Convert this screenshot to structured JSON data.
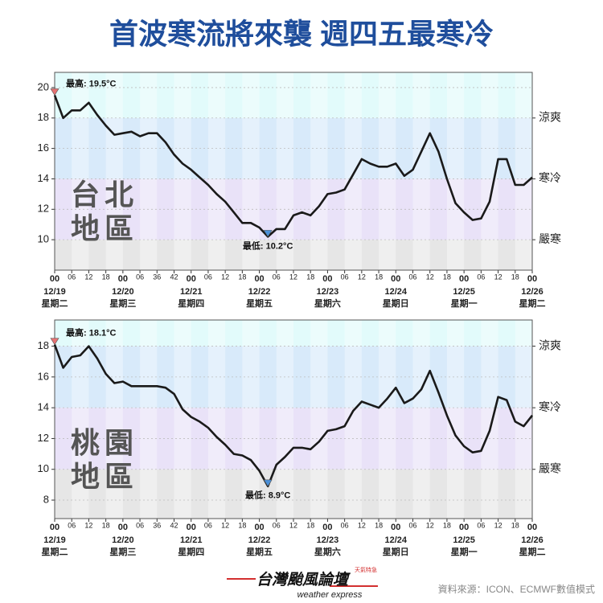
{
  "title": "首波寒流將來襲 週四五最寒冷",
  "chart_data": [
    {
      "type": "line",
      "station_lines": [
        "台北",
        "地區"
      ],
      "x": [
        0,
        3,
        6,
        9,
        12,
        15,
        18,
        21,
        24,
        27,
        30,
        33,
        36,
        39,
        42,
        45,
        48,
        51,
        54,
        57,
        60,
        63,
        66,
        69,
        72,
        75,
        78,
        81,
        84,
        87,
        90,
        93,
        96,
        99,
        102,
        105,
        108,
        111,
        114,
        117,
        120,
        123,
        126,
        129,
        132,
        135,
        138,
        141,
        144,
        147,
        150,
        153,
        156,
        159,
        162,
        165,
        168
      ],
      "series": [
        {
          "color": "#1a1a1a",
          "values": [
            19.5,
            18.0,
            18.5,
            18.5,
            19.0,
            18.2,
            17.5,
            16.9,
            17.0,
            17.1,
            16.8,
            17.0,
            17.0,
            16.4,
            15.6,
            15.0,
            14.6,
            14.1,
            13.6,
            13.0,
            12.5,
            11.8,
            11.1,
            11.1,
            10.8,
            10.2,
            10.7,
            10.7,
            11.6,
            11.8,
            11.6,
            12.2,
            13.0,
            13.1,
            13.3,
            14.3,
            15.3,
            15.0,
            14.8,
            14.8,
            15.0,
            14.2,
            14.6,
            15.8,
            17.0,
            15.8,
            14.0,
            12.4,
            11.8,
            11.3,
            11.4,
            12.5,
            15.3,
            15.3,
            13.6,
            13.6,
            14.1
          ]
        }
      ],
      "xlim": [
        0,
        168
      ],
      "xticks": [
        {
          "value": 0,
          "label": "00"
        },
        {
          "value": 6,
          "label": "06"
        },
        12,
        18,
        {
          "value": 24,
          "label": "00"
        },
        {
          "value": 30,
          "label": "06"
        },
        36,
        42,
        {
          "value": 48,
          "label": "00"
        },
        {
          "value": 54,
          "label": "06"
        },
        {
          "value": 60,
          "label": "12"
        },
        {
          "value": 66,
          "label": "18"
        },
        {
          "value": 72,
          "label": "00"
        },
        {
          "value": 78,
          "label": "06"
        },
        {
          "value": 84,
          "label": "12"
        },
        {
          "value": 90,
          "label": "18"
        },
        {
          "value": 96,
          "label": "00"
        },
        {
          "value": 102,
          "label": "06"
        },
        {
          "value": 108,
          "label": "12"
        },
        {
          "value": 114,
          "label": "18"
        },
        {
          "value": 120,
          "label": "00"
        },
        {
          "value": 126,
          "label": "06"
        },
        {
          "value": 132,
          "label": "12"
        },
        {
          "value": 138,
          "label": "18"
        },
        {
          "value": 144,
          "label": "00"
        },
        {
          "value": 150,
          "label": "06"
        },
        {
          "value": 156,
          "label": "12"
        },
        {
          "value": 162,
          "label": "18"
        },
        {
          "value": 168,
          "label": "00"
        }
      ],
      "days": [
        {
          "value": 0,
          "date": "12/19",
          "weekday": "星期二"
        },
        {
          "value": 24,
          "date": "12/20",
          "weekday": "星期三"
        },
        {
          "value": 48,
          "date": "12/21",
          "weekday": "星期四"
        },
        {
          "value": 72,
          "date": "12/22",
          "weekday": "星期五"
        },
        {
          "value": 96,
          "date": "12/23",
          "weekday": "星期六"
        },
        {
          "value": 120,
          "date": "12/24",
          "weekday": "星期日"
        },
        {
          "value": 144,
          "date": "12/25",
          "weekday": "星期一"
        },
        {
          "value": 168,
          "date": "12/26",
          "weekday": "星期二"
        }
      ],
      "ylim": [
        8,
        21
      ],
      "yticks": [
        10,
        12,
        14,
        16,
        18,
        20
      ],
      "grid": true,
      "band_edges": [
        18,
        14,
        10
      ],
      "band_colors": [
        "#e2fbfb",
        "#d8eafa",
        "#e9e2f8",
        "#e6e6e6"
      ],
      "zone_labels": [
        {
          "value": 18,
          "label": "涼爽"
        },
        {
          "value": 14,
          "label": "寒冷"
        },
        {
          "value": 10,
          "label": "嚴寒"
        }
      ],
      "annotations": [
        {
          "kind": "max",
          "x": 0,
          "y": 19.5,
          "text": "最高: 19.5°C",
          "color": "#e57373"
        },
        {
          "kind": "min",
          "x": 75,
          "y": 10.2,
          "text": "最低: 10.2°C",
          "color": "#4a90d9"
        }
      ]
    },
    {
      "type": "line",
      "station_lines": [
        "桃園",
        "地區"
      ],
      "x": [
        0,
        3,
        6,
        9,
        12,
        15,
        18,
        21,
        24,
        27,
        30,
        33,
        36,
        39,
        42,
        45,
        48,
        51,
        54,
        57,
        60,
        63,
        66,
        69,
        72,
        75,
        78,
        81,
        84,
        87,
        90,
        93,
        96,
        99,
        102,
        105,
        108,
        111,
        114,
        117,
        120,
        123,
        126,
        129,
        132,
        135,
        138,
        141,
        144,
        147,
        150,
        153,
        156,
        159,
        162,
        165,
        168
      ],
      "series": [
        {
          "color": "#1a1a1a",
          "values": [
            18.1,
            16.6,
            17.3,
            17.4,
            18.0,
            17.2,
            16.2,
            15.6,
            15.7,
            15.4,
            15.4,
            15.4,
            15.4,
            15.3,
            14.9,
            13.9,
            13.4,
            13.1,
            12.7,
            12.1,
            11.6,
            11.0,
            10.9,
            10.6,
            9.9,
            8.9,
            10.3,
            10.8,
            11.4,
            11.4,
            11.3,
            11.8,
            12.5,
            12.6,
            12.8,
            13.8,
            14.4,
            14.2,
            14.0,
            14.6,
            15.3,
            14.3,
            14.6,
            15.2,
            16.4,
            15.0,
            13.5,
            12.2,
            11.5,
            11.1,
            11.2,
            12.5,
            14.7,
            14.5,
            13.1,
            12.8,
            13.5
          ]
        }
      ],
      "xlim": [
        0,
        168
      ],
      "xticks": [
        {
          "value": 0,
          "label": "00"
        },
        {
          "value": 6,
          "label": "06"
        },
        12,
        18,
        {
          "value": 24,
          "label": "00"
        },
        {
          "value": 30,
          "label": "06"
        },
        36,
        42,
        {
          "value": 48,
          "label": "00"
        },
        {
          "value": 54,
          "label": "06"
        },
        {
          "value": 60,
          "label": "12"
        },
        {
          "value": 66,
          "label": "18"
        },
        {
          "value": 72,
          "label": "00"
        },
        {
          "value": 78,
          "label": "06"
        },
        {
          "value": 84,
          "label": "12"
        },
        {
          "value": 90,
          "label": "18"
        },
        {
          "value": 96,
          "label": "00"
        },
        {
          "value": 102,
          "label": "06"
        },
        {
          "value": 108,
          "label": "12"
        },
        {
          "value": 114,
          "label": "18"
        },
        {
          "value": 120,
          "label": "00"
        },
        {
          "value": 126,
          "label": "06"
        },
        {
          "value": 132,
          "label": "12"
        },
        {
          "value": 138,
          "label": "18"
        },
        {
          "value": 144,
          "label": "00"
        },
        {
          "value": 150,
          "label": "06"
        },
        {
          "value": 156,
          "label": "12"
        },
        {
          "value": 162,
          "label": "18"
        },
        {
          "value": 168,
          "label": "00"
        }
      ],
      "days": [
        {
          "value": 0,
          "date": "12/19",
          "weekday": "星期二"
        },
        {
          "value": 24,
          "date": "12/20",
          "weekday": "星期三"
        },
        {
          "value": 48,
          "date": "12/21",
          "weekday": "星期四"
        },
        {
          "value": 72,
          "date": "12/22",
          "weekday": "星期五"
        },
        {
          "value": 96,
          "date": "12/23",
          "weekday": "星期六"
        },
        {
          "value": 120,
          "date": "12/24",
          "weekday": "星期日"
        },
        {
          "value": 144,
          "date": "12/25",
          "weekday": "星期一"
        },
        {
          "value": 168,
          "date": "12/26",
          "weekday": "星期二"
        }
      ],
      "ylim": [
        6.8,
        19.7
      ],
      "yticks": [
        8,
        10,
        12,
        14,
        16,
        18
      ],
      "grid": true,
      "band_edges": [
        18,
        14,
        10
      ],
      "band_colors": [
        "#e2fbfb",
        "#d8eafa",
        "#e9e2f8",
        "#e6e6e6"
      ],
      "zone_labels": [
        {
          "value": 18,
          "label": "涼爽"
        },
        {
          "value": 14,
          "label": "寒冷"
        },
        {
          "value": 10,
          "label": "嚴寒"
        }
      ],
      "annotations": [
        {
          "kind": "max",
          "x": 0,
          "y": 18.1,
          "text": "最高: 18.1°C",
          "color": "#e57373"
        },
        {
          "kind": "min",
          "x": 75,
          "y": 8.9,
          "text": "最低: 8.9°C",
          "color": "#4a90d9"
        }
      ]
    }
  ],
  "footer": {
    "logo": "台灣颱風論壇",
    "logo_sub": "weather express",
    "badge": "天氣特急",
    "source": "資料來源：ICON、ECMWF數值模式"
  }
}
